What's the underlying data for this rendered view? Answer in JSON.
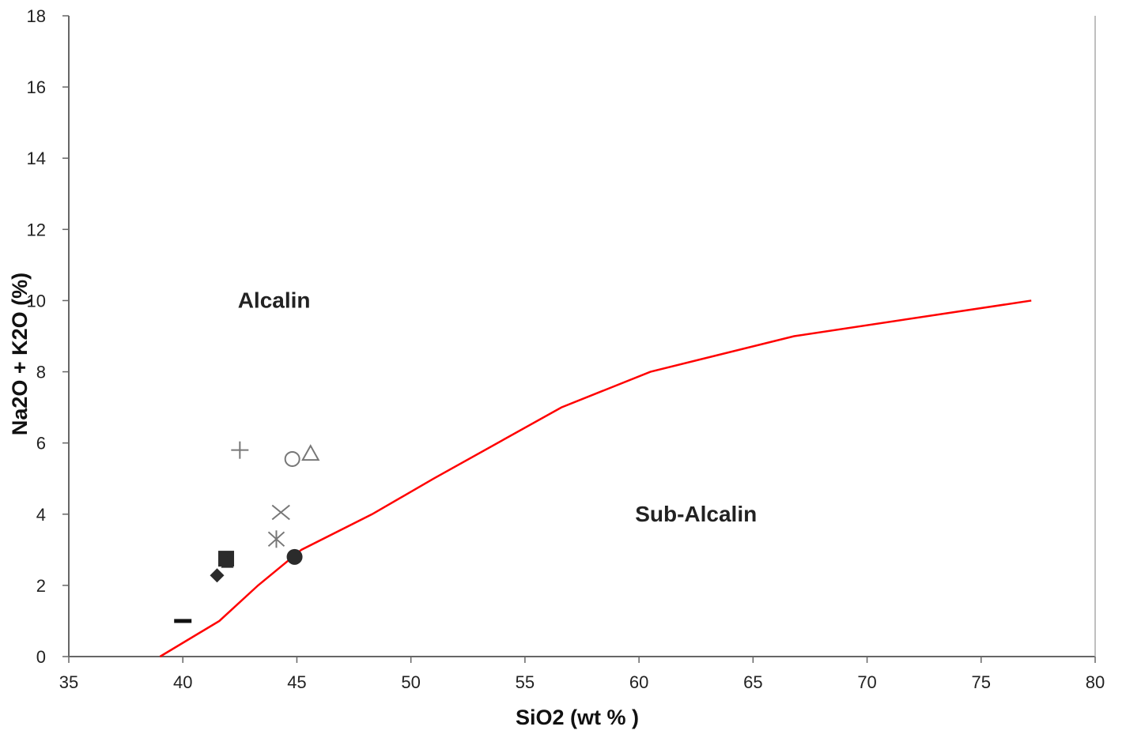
{
  "chart_data": {
    "type": "scatter",
    "title": "",
    "xlabel": "SiO2 (wt % )",
    "ylabel": "Na2O + K2O (%)",
    "xlim": [
      35,
      80
    ],
    "ylim": [
      0,
      18
    ],
    "xticks": [
      35,
      40,
      45,
      50,
      55,
      60,
      65,
      70,
      75,
      80
    ],
    "yticks": [
      0,
      2,
      4,
      6,
      8,
      10,
      12,
      14,
      16,
      18
    ],
    "grid": false,
    "legend": "none",
    "boundary": {
      "color": "#ff0000",
      "points": [
        [
          39,
          0
        ],
        [
          41.6,
          1
        ],
        [
          43.3,
          2
        ],
        [
          45.2,
          3
        ],
        [
          48.3,
          4
        ],
        [
          51,
          5
        ],
        [
          56.6,
          7
        ],
        [
          60.5,
          8
        ],
        [
          66.8,
          9
        ],
        [
          77.2,
          10
        ]
      ]
    },
    "regions": [
      {
        "label": "Alcalin",
        "x": 44,
        "y": 9.8
      },
      {
        "label": "Sub-Alcalin",
        "x": 62.5,
        "y": 3.8
      }
    ],
    "points": [
      {
        "marker": "plus",
        "x": 42.5,
        "y": 5.8
      },
      {
        "marker": "circle-open",
        "x": 44.8,
        "y": 5.55
      },
      {
        "marker": "triangle-open",
        "x": 45.6,
        "y": 5.7
      },
      {
        "marker": "x",
        "x": 44.3,
        "y": 4.05
      },
      {
        "marker": "asterisk",
        "x": 44.1,
        "y": 3.3
      },
      {
        "marker": "circle-filled",
        "x": 44.9,
        "y": 2.8
      },
      {
        "marker": "square-filled",
        "x": 41.9,
        "y": 2.75
      },
      {
        "marker": "triangle-filled",
        "x": 41.95,
        "y": 2.65
      },
      {
        "marker": "diamond-filled",
        "x": 41.5,
        "y": 2.28
      },
      {
        "marker": "dash",
        "x": 40,
        "y": 1.0
      }
    ]
  }
}
